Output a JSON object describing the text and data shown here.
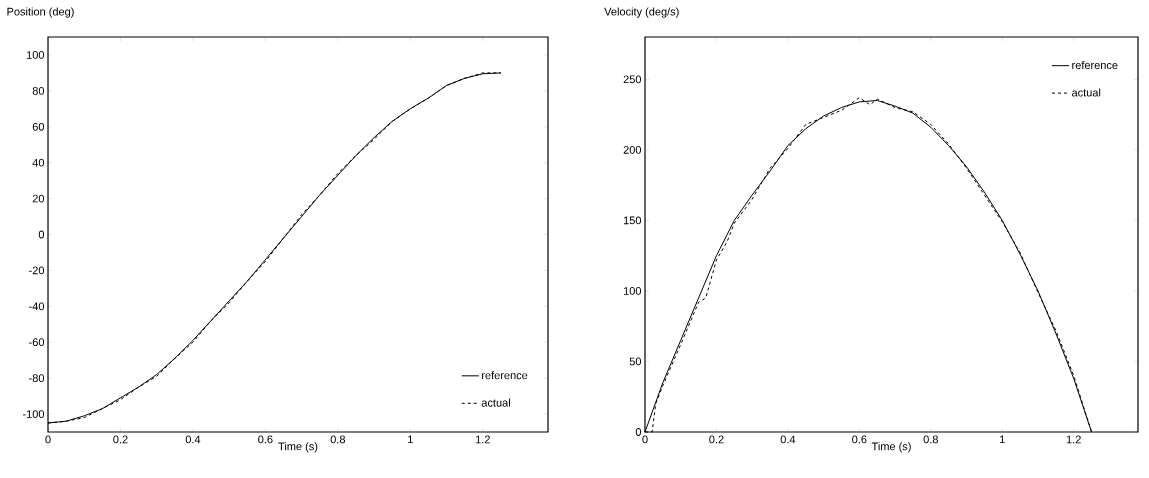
{
  "chart_data": [
    {
      "type": "line",
      "ylabel": "Position (deg)",
      "xlabel": "Time (s)",
      "xlim": [
        0,
        1.38
      ],
      "ylim": [
        -110,
        110
      ],
      "xticks": [
        0,
        0.2,
        0.4,
        0.6,
        0.8,
        1,
        1.2
      ],
      "yticks": [
        -100,
        -80,
        -60,
        -40,
        -20,
        0,
        20,
        40,
        60,
        80,
        100
      ],
      "legend": "bottom right",
      "grid": false,
      "x": [
        0,
        0.05,
        0.1,
        0.15,
        0.2,
        0.25,
        0.3,
        0.35,
        0.4,
        0.45,
        0.5,
        0.55,
        0.6,
        0.65,
        0.7,
        0.75,
        0.8,
        0.85,
        0.9,
        0.95,
        1.0,
        1.05,
        1.1,
        1.15,
        1.2,
        1.25
      ],
      "series": [
        {
          "name": "reference",
          "color": "#000000",
          "line_style": "solid",
          "values": [
            -105,
            -104,
            -101,
            -97,
            -91,
            -85,
            -78,
            -69,
            -59,
            -48,
            -37,
            -26,
            -14,
            -2,
            10,
            22,
            33,
            44,
            54,
            63,
            70,
            76,
            83,
            87,
            89.5,
            90
          ]
        },
        {
          "name": "actual",
          "color": "#000000",
          "line_style": "dashed",
          "values": [
            -105,
            -104,
            -102,
            -97,
            -92,
            -85,
            -79,
            -69,
            -60,
            -48,
            -38,
            -26,
            -15,
            -2,
            11,
            22,
            34,
            44,
            53,
            63,
            70,
            76,
            83,
            87,
            90,
            90
          ]
        }
      ]
    },
    {
      "type": "line",
      "ylabel": "Velocity (deg/s)",
      "xlabel": "Time (s)",
      "xlim": [
        0,
        1.38
      ],
      "ylim": [
        0,
        280
      ],
      "xticks": [
        0,
        0.2,
        0.4,
        0.6,
        0.8,
        1,
        1.2
      ],
      "yticks": [
        0,
        50,
        100,
        150,
        200,
        250
      ],
      "legend": "top right",
      "grid": false,
      "series": [
        {
          "name": "reference",
          "color": "#000000",
          "line_style": "solid",
          "x": [
            0,
            0.05,
            0.1,
            0.15,
            0.2,
            0.25,
            0.3,
            0.35,
            0.4,
            0.45,
            0.5,
            0.55,
            0.6,
            0.65,
            0.7,
            0.75,
            0.8,
            0.85,
            0.9,
            0.95,
            1.0,
            1.05,
            1.1,
            1.15,
            1.2,
            1.25
          ],
          "values": [
            0,
            35,
            65,
            95,
            125,
            150,
            168,
            185,
            203,
            215,
            224,
            230,
            234,
            235,
            231,
            226,
            216,
            203,
            188,
            170,
            150,
            126,
            100,
            70,
            38,
            0
          ]
        },
        {
          "name": "actual",
          "color": "#000000",
          "line_style": "dashed",
          "x": [
            0,
            0.02,
            0.03,
            0.05,
            0.1,
            0.15,
            0.17,
            0.2,
            0.23,
            0.25,
            0.3,
            0.35,
            0.4,
            0.45,
            0.5,
            0.55,
            0.6,
            0.63,
            0.65,
            0.7,
            0.75,
            0.8,
            0.85,
            0.9,
            0.95,
            1.0,
            1.05,
            1.1,
            1.15,
            1.2,
            1.25
          ],
          "values": [
            0,
            0,
            20,
            33,
            62,
            92,
            95,
            122,
            135,
            148,
            165,
            187,
            201,
            218,
            223,
            228,
            237,
            232,
            236,
            230,
            227,
            218,
            204,
            187,
            168,
            149,
            127,
            99,
            72,
            40,
            0
          ]
        }
      ]
    }
  ]
}
